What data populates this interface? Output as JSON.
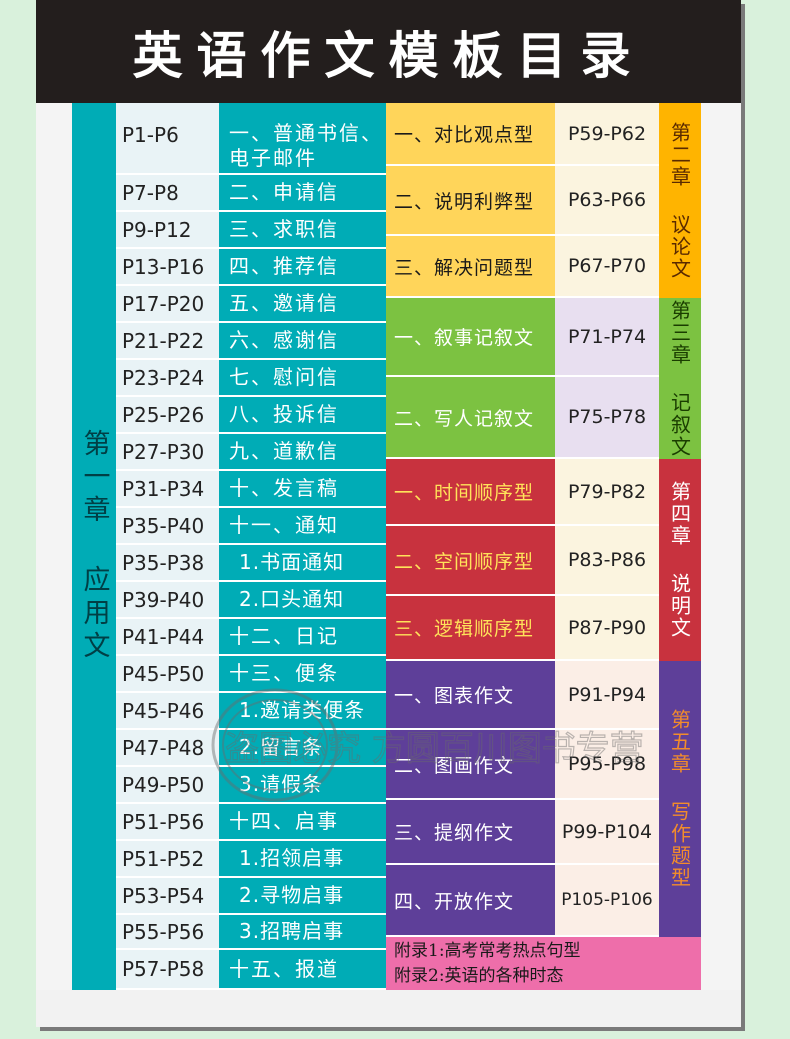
{
  "title": "英语作文模板目录",
  "chapter1": {
    "label": "第一章 应用文",
    "rows": [
      {
        "page": "P1-P6",
        "topic": "一、普通书信、电子邮件",
        "sub": false
      },
      {
        "page": "P7-P8",
        "topic": "二、申请信",
        "sub": false
      },
      {
        "page": "P9-P12",
        "topic": "三、求职信",
        "sub": false
      },
      {
        "page": "P13-P16",
        "topic": "四、推荐信",
        "sub": false
      },
      {
        "page": "P17-P20",
        "topic": "五、邀请信",
        "sub": false
      },
      {
        "page": "P21-P22",
        "topic": "六、感谢信",
        "sub": false
      },
      {
        "page": "P23-P24",
        "topic": "七、慰问信",
        "sub": false
      },
      {
        "page": "P25-P26",
        "topic": "八、投诉信",
        "sub": false
      },
      {
        "page": "P27-P30",
        "topic": "九、道歉信",
        "sub": false
      },
      {
        "page": "P31-P34",
        "topic": "十、发言稿",
        "sub": false
      },
      {
        "page": "P35-P40",
        "topic": "十一、通知",
        "sub": false
      },
      {
        "page": "P35-P38",
        "topic": "1.书面通知",
        "sub": true
      },
      {
        "page": "P39-P40",
        "topic": "2.口头通知",
        "sub": true
      },
      {
        "page": "P41-P44",
        "topic": "十二、日记",
        "sub": false
      },
      {
        "page": "P45-P50",
        "topic": "十三、便条",
        "sub": false
      },
      {
        "page": "P45-P46",
        "topic": "1.邀请类便条",
        "sub": true
      },
      {
        "page": "P47-P48",
        "topic": "2.留言条",
        "sub": true
      },
      {
        "page": "P49-P50",
        "topic": "3.请假条",
        "sub": true
      },
      {
        "page": "P51-P56",
        "topic": "十四、启事",
        "sub": false
      },
      {
        "page": "P51-P52",
        "topic": "1.招领启事",
        "sub": true
      },
      {
        "page": "P53-P54",
        "topic": "2.寻物启事",
        "sub": true
      },
      {
        "page": "P55-P56",
        "topic": "3.招聘启事",
        "sub": true
      },
      {
        "page": "P57-P58",
        "topic": "十五、报道",
        "sub": false
      }
    ]
  },
  "chapters": [
    {
      "label": "第二章 议论文",
      "color": "#ffd55a",
      "label_color": "#ffb400",
      "text_color": "#1a1a1a",
      "chapter_text": "#5a2a00",
      "items": [
        {
          "topic": "一、对比观点型",
          "page": "P59-P62"
        },
        {
          "topic": "二、说明利弊型",
          "page": "P63-P66"
        },
        {
          "topic": "三、解决问题型",
          "page": "P67-P70"
        }
      ]
    },
    {
      "label": "第三章 记叙文",
      "color": "#7cc241",
      "label_color": "#7cc241",
      "text_color": "#ffffff",
      "chapter_text": "#1a3d00",
      "items": [
        {
          "topic": "一、叙事记叙文",
          "page": "P71-P74"
        },
        {
          "topic": "二、写人记叙文",
          "page": "P75-P78"
        }
      ]
    },
    {
      "label": "第四章 说明文",
      "color": "#c8323e",
      "label_color": "#c8323e",
      "text_color": "#ffe35a",
      "chapter_text": "#ffffff",
      "items": [
        {
          "topic": "一、时间顺序型",
          "page": "P79-P82"
        },
        {
          "topic": "二、空间顺序型",
          "page": "P83-P86"
        },
        {
          "topic": "三、逻辑顺序型",
          "page": "P87-P90"
        }
      ]
    },
    {
      "label": "第五章 写作题型",
      "color": "#5e3f99",
      "label_color": "#5e3f99",
      "text_color": "#ffffff",
      "chapter_text": "#f28c2b",
      "items": [
        {
          "topic": "一、图表作文",
          "page": "P91-P94"
        },
        {
          "topic": "二、图画作文",
          "page": "P95-P98"
        },
        {
          "topic": "三、提纲作文",
          "page": "P99-P104"
        },
        {
          "topic": "四、开放作文",
          "page": "P105-P106"
        }
      ]
    }
  ],
  "appendix": [
    "附录1:高考常考热点句型",
    "附录2:英语的各种时态"
  ],
  "watermark": "盗图必究 方圆百川图书专营"
}
